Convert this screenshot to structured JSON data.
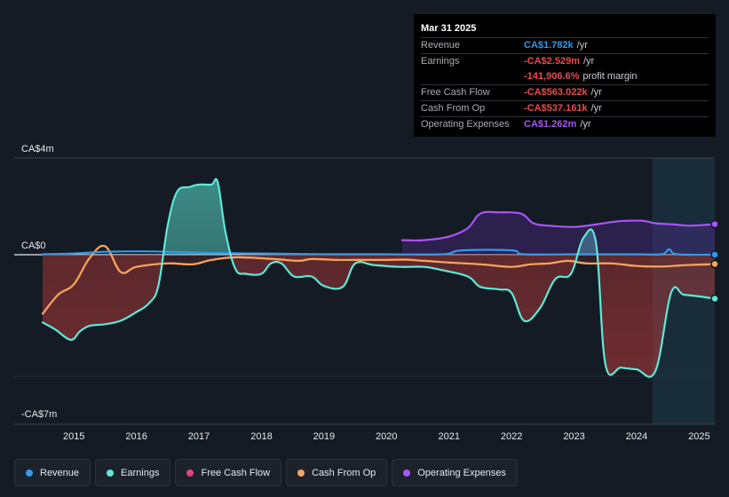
{
  "tooltip": {
    "date": "Mar 31 2025",
    "rows": [
      {
        "label": "Revenue",
        "value": "CA$1.782k",
        "unit": "/yr",
        "color": "#2e9bf0"
      },
      {
        "label": "Earnings",
        "value": "-CA$2.529m",
        "unit": "/yr",
        "color": "#ef4a4a"
      },
      {
        "label": "",
        "value": "-141,906.6%",
        "unit": "profit margin",
        "color": "#ef4a4a"
      },
      {
        "label": "Free Cash Flow",
        "value": "-CA$563.022k",
        "unit": "/yr",
        "color": "#ef4a4a"
      },
      {
        "label": "Cash From Op",
        "value": "-CA$537.161k",
        "unit": "/yr",
        "color": "#ef4a4a"
      },
      {
        "label": "Operating Expenses",
        "value": "CA$1.262m",
        "unit": "/yr",
        "color": "#a855f7"
      }
    ]
  },
  "chart_data": {
    "type": "area",
    "y_unit": "CA$ millions",
    "y_tick_labels": [
      "CA$4m",
      "CA$0",
      "-CA$7m"
    ],
    "y_tick_values": [
      4,
      0,
      -7
    ],
    "ylim": [
      -7,
      4
    ],
    "xlim": [
      2014.5,
      2025.25
    ],
    "x_ticks": [
      2015,
      2016,
      2017,
      2018,
      2019,
      2020,
      2021,
      2022,
      2023,
      2024,
      2025
    ],
    "x_tick_labels": [
      "2015",
      "2016",
      "2017",
      "2018",
      "2019",
      "2020",
      "2021",
      "2022",
      "2023",
      "2024",
      "2025"
    ],
    "forecast_region_start": 2024.25,
    "series": [
      {
        "name": "Revenue",
        "color": "#2e9bf0",
        "points": [
          [
            2014.5,
            0.02
          ],
          [
            2015.0,
            0.05
          ],
          [
            2015.5,
            0.12
          ],
          [
            2016.0,
            0.14
          ],
          [
            2016.5,
            0.12
          ],
          [
            2017.0,
            0.08
          ],
          [
            2017.5,
            0.06
          ],
          [
            2018.0,
            0.05
          ],
          [
            2019.0,
            0.02
          ],
          [
            2020.0,
            0.02
          ],
          [
            2020.9,
            0.02
          ],
          [
            2021.2,
            0.18
          ],
          [
            2022.0,
            0.18
          ],
          [
            2022.2,
            0.02
          ],
          [
            2023.0,
            0.02
          ],
          [
            2024.0,
            0.02
          ],
          [
            2024.4,
            0.02
          ],
          [
            2024.52,
            0.22
          ],
          [
            2024.65,
            0.02
          ],
          [
            2025.25,
            0.002
          ]
        ]
      },
      {
        "name": "Earnings",
        "color": "#5ee8d8",
        "points": [
          [
            2014.5,
            -3.9
          ],
          [
            2014.7,
            -4.3
          ],
          [
            2014.95,
            -4.9
          ],
          [
            2015.1,
            -4.4
          ],
          [
            2015.25,
            -4.1
          ],
          [
            2015.5,
            -4.0
          ],
          [
            2015.75,
            -3.8
          ],
          [
            2016.0,
            -3.3
          ],
          [
            2016.2,
            -2.8
          ],
          [
            2016.35,
            -1.8
          ],
          [
            2016.5,
            1.2
          ],
          [
            2016.65,
            2.6
          ],
          [
            2016.85,
            2.8
          ],
          [
            2017.0,
            2.9
          ],
          [
            2017.2,
            2.9
          ],
          [
            2017.3,
            3.0
          ],
          [
            2017.42,
            1.0
          ],
          [
            2017.58,
            -0.8
          ],
          [
            2017.75,
            -1.1
          ],
          [
            2018.0,
            -1.1
          ],
          [
            2018.15,
            -0.5
          ],
          [
            2018.32,
            -0.5
          ],
          [
            2018.52,
            -1.25
          ],
          [
            2018.8,
            -1.25
          ],
          [
            2019.0,
            -1.8
          ],
          [
            2019.3,
            -1.85
          ],
          [
            2019.5,
            -0.5
          ],
          [
            2019.8,
            -0.6
          ],
          [
            2020.2,
            -0.7
          ],
          [
            2020.6,
            -0.7
          ],
          [
            2020.9,
            -0.9
          ],
          [
            2021.3,
            -1.25
          ],
          [
            2021.5,
            -1.85
          ],
          [
            2021.8,
            -2.0
          ],
          [
            2022.0,
            -2.2
          ],
          [
            2022.2,
            -3.8
          ],
          [
            2022.45,
            -3.1
          ],
          [
            2022.7,
            -1.4
          ],
          [
            2022.95,
            -1.1
          ],
          [
            2023.15,
            0.7
          ],
          [
            2023.35,
            0.5
          ],
          [
            2023.5,
            -6.3
          ],
          [
            2023.75,
            -6.5
          ],
          [
            2024.0,
            -6.6
          ],
          [
            2024.3,
            -6.7
          ],
          [
            2024.55,
            -2.2
          ],
          [
            2024.75,
            -2.3
          ],
          [
            2025.0,
            -2.4
          ],
          [
            2025.25,
            -2.53
          ]
        ]
      },
      {
        "name": "Free Cash Flow",
        "color": "#e0457b",
        "points": [
          [
            2014.5,
            -3.4
          ],
          [
            2014.75,
            -2.3
          ],
          [
            2015.0,
            -1.7
          ],
          [
            2015.25,
            -0.2
          ],
          [
            2015.5,
            0.35
          ],
          [
            2015.75,
            -1.0
          ],
          [
            2016.0,
            -0.7
          ],
          [
            2016.5,
            -0.5
          ],
          [
            2016.9,
            -0.55
          ],
          [
            2017.2,
            -0.3
          ],
          [
            2017.6,
            -0.15
          ],
          [
            2018.2,
            -0.25
          ],
          [
            2018.6,
            -0.35
          ],
          [
            2018.8,
            -0.25
          ],
          [
            2019.2,
            -0.3
          ],
          [
            2019.5,
            -0.3
          ],
          [
            2020.0,
            -0.3
          ],
          [
            2020.3,
            -0.28
          ],
          [
            2020.6,
            -0.35
          ],
          [
            2021.0,
            -0.45
          ],
          [
            2021.5,
            -0.55
          ],
          [
            2022.0,
            -0.7
          ],
          [
            2022.3,
            -0.55
          ],
          [
            2022.6,
            -0.5
          ],
          [
            2022.9,
            -0.35
          ],
          [
            2023.2,
            -0.5
          ],
          [
            2023.6,
            -0.5
          ],
          [
            2024.0,
            -0.65
          ],
          [
            2024.4,
            -0.68
          ],
          [
            2024.8,
            -0.6
          ],
          [
            2025.25,
            -0.563
          ]
        ]
      },
      {
        "name": "Cash From Op",
        "color": "#f2a65a",
        "points": [
          [
            2014.5,
            -3.4
          ],
          [
            2014.75,
            -2.3
          ],
          [
            2015.0,
            -1.7
          ],
          [
            2015.25,
            -0.2
          ],
          [
            2015.5,
            0.35
          ],
          [
            2015.75,
            -1.0
          ],
          [
            2016.0,
            -0.7
          ],
          [
            2016.5,
            -0.5
          ],
          [
            2016.9,
            -0.55
          ],
          [
            2017.2,
            -0.3
          ],
          [
            2017.6,
            -0.15
          ],
          [
            2018.2,
            -0.25
          ],
          [
            2018.6,
            -0.35
          ],
          [
            2018.8,
            -0.25
          ],
          [
            2019.2,
            -0.3
          ],
          [
            2019.5,
            -0.3
          ],
          [
            2020.0,
            -0.3
          ],
          [
            2020.3,
            -0.28
          ],
          [
            2020.6,
            -0.35
          ],
          [
            2021.0,
            -0.45
          ],
          [
            2021.5,
            -0.55
          ],
          [
            2022.0,
            -0.7
          ],
          [
            2022.3,
            -0.55
          ],
          [
            2022.6,
            -0.5
          ],
          [
            2022.9,
            -0.35
          ],
          [
            2023.2,
            -0.5
          ],
          [
            2023.6,
            -0.5
          ],
          [
            2024.0,
            -0.65
          ],
          [
            2024.4,
            -0.68
          ],
          [
            2024.8,
            -0.6
          ],
          [
            2025.25,
            -0.537
          ]
        ]
      },
      {
        "name": "Operating Expenses",
        "color": "#a855f7",
        "points": [
          [
            2020.25,
            0.6
          ],
          [
            2020.6,
            0.6
          ],
          [
            2021.0,
            0.75
          ],
          [
            2021.3,
            1.1
          ],
          [
            2021.5,
            1.7
          ],
          [
            2021.8,
            1.75
          ],
          [
            2022.15,
            1.7
          ],
          [
            2022.35,
            1.3
          ],
          [
            2022.6,
            1.2
          ],
          [
            2023.0,
            1.15
          ],
          [
            2023.35,
            1.25
          ],
          [
            2023.6,
            1.35
          ],
          [
            2023.8,
            1.4
          ],
          [
            2024.1,
            1.4
          ],
          [
            2024.3,
            1.3
          ],
          [
            2024.6,
            1.25
          ],
          [
            2024.85,
            1.2
          ],
          [
            2025.25,
            1.262
          ]
        ]
      }
    ]
  },
  "legend": [
    {
      "label": "Revenue",
      "color": "#2e9bf0"
    },
    {
      "label": "Earnings",
      "color": "#5ee8d8"
    },
    {
      "label": "Free Cash Flow",
      "color": "#e0457b"
    },
    {
      "label": "Cash From Op",
      "color": "#f2a65a"
    },
    {
      "label": "Operating Expenses",
      "color": "#a855f7"
    }
  ]
}
